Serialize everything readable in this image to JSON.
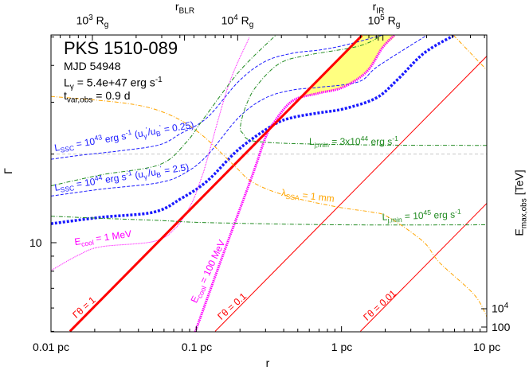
{
  "chart_data": {
    "type": "line",
    "xlabel": "r",
    "ylabel": "Γ",
    "right_label": [
      [
        "n",
        "E"
      ],
      [
        "sub",
        "max,obs"
      ],
      [
        "n",
        " [TeV]"
      ]
    ],
    "x_scale": "log",
    "y_scale": "log",
    "xlim": [
      0.01,
      10
    ],
    "ylim": [
      5,
      50.7
    ],
    "x_ticks": [
      {
        "v": 0.01,
        "label": "0.01 pc"
      },
      {
        "v": 0.1,
        "label": "0.1 pc"
      },
      {
        "v": 1,
        "label": "1 pc"
      },
      {
        "v": 10,
        "label": "10 pc"
      }
    ],
    "y_ticks": [
      {
        "v": 10,
        "label": "10"
      }
    ],
    "right_ticks": [
      {
        "label": [
          [
            "n",
            "10"
          ],
          [
            "sup",
            "4"
          ]
        ]
      },
      {
        "label": [
          [
            "n",
            "100"
          ]
        ]
      }
    ],
    "top_ticks": [
      {
        "label": [
          [
            "n",
            "10"
          ],
          [
            "sup",
            "3"
          ],
          [
            "n",
            " R"
          ],
          [
            "sub",
            "g"
          ]
        ]
      },
      {
        "label": [
          [
            "n",
            "10"
          ],
          [
            "sup",
            "4"
          ],
          [
            "n",
            " R"
          ],
          [
            "sub",
            "g"
          ]
        ]
      },
      {
        "label": [
          [
            "n",
            "10"
          ],
          [
            "sup",
            "5"
          ],
          [
            "n",
            " R"
          ],
          [
            "sub",
            "g"
          ]
        ]
      }
    ],
    "markers": [
      {
        "name": [
          [
            "n",
            "r"
          ],
          [
            "sub",
            "BLR"
          ]
        ],
        "r": 0.083
      },
      {
        "name": [
          [
            "n",
            "r"
          ],
          [
            "sub",
            "IR"
          ]
        ],
        "r": 1.79
      }
    ],
    "info": {
      "source": "PKS 1510-089",
      "mjd": "MJD 54948",
      "lgamma": [
        [
          "n",
          "L"
        ],
        [
          "sub",
          "γ"
        ],
        [
          "n",
          " = 5.4e+47 erg s"
        ],
        [
          "sup",
          "-1"
        ]
      ],
      "tvar": [
        [
          "n",
          "t"
        ],
        [
          "sub",
          "var,obs"
        ],
        [
          "n",
          " = 0.9 d"
        ]
      ]
    },
    "colors": {
      "blue": "#1a1aff",
      "magenta": "#ff00ff",
      "red": "#ff0000",
      "green": "#228b22",
      "orange": "#ffa500",
      "yellow": "#ffff80",
      "gray": "#c8c8c8"
    },
    "allowed_region": [
      [
        1.38,
        50.7
      ],
      [
        2.31,
        50.7
      ],
      [
        1.91,
        45.9
      ],
      [
        1.49,
        38.1
      ],
      [
        1.02,
        33.7
      ],
      [
        0.697,
        32.2
      ],
      [
        0.518,
        31.0
      ]
    ],
    "reference_line_gamma": 20,
    "series": [
      {
        "id": "lssc43",
        "style": "blue-dashed",
        "label": [
          [
            "n",
            "L"
          ],
          [
            "sub",
            "SSC"
          ],
          [
            "n",
            " = 10"
          ],
          [
            "sup",
            "43"
          ],
          [
            "n",
            " erg s"
          ],
          [
            "sup",
            "-1"
          ],
          [
            "n",
            "  (u"
          ],
          [
            "sub",
            "γ"
          ],
          [
            "sup",
            "'"
          ],
          [
            "n",
            "/u"
          ],
          [
            "sub",
            "B"
          ],
          [
            "sup",
            "'"
          ],
          [
            "n",
            " = 0.25)"
          ]
        ],
        "points": [
          [
            0.01,
            19.2
          ],
          [
            0.0157,
            19.8
          ],
          [
            0.0296,
            20.5
          ],
          [
            0.0557,
            21.5
          ],
          [
            0.0783,
            23.5
          ],
          [
            0.119,
            26.6
          ],
          [
            0.197,
            35.4
          ],
          [
            0.299,
            41.3
          ],
          [
            0.459,
            44.0
          ],
          [
            0.697,
            45.1
          ],
          [
            1.04,
            46.8
          ],
          [
            1.91,
            50.7
          ]
        ]
      },
      {
        "id": "lssc44",
        "style": "blue-dashed",
        "label": [
          [
            "n",
            "L"
          ],
          [
            "sub",
            "SSC"
          ],
          [
            "n",
            " = 10"
          ],
          [
            "sup",
            "44"
          ],
          [
            "n",
            " erg s"
          ],
          [
            "sup",
            "-1"
          ],
          [
            "n",
            "  (u"
          ],
          [
            "sub",
            "γ"
          ],
          [
            "sup",
            "'"
          ],
          [
            "n",
            "/u"
          ],
          [
            "sub",
            "B"
          ],
          [
            "sup",
            "'"
          ],
          [
            "n",
            " = 2.5)"
          ]
        ],
        "points": [
          [
            0.01,
            14.4
          ],
          [
            0.0222,
            15.2
          ],
          [
            0.0557,
            16.0
          ],
          [
            0.0845,
            17.3
          ],
          [
            0.119,
            19.8
          ],
          [
            0.197,
            26.7
          ],
          [
            0.299,
            31.0
          ],
          [
            0.459,
            33.0
          ],
          [
            0.697,
            33.7
          ],
          [
            1.31,
            35.2
          ],
          [
            1.79,
            39.8
          ],
          [
            3.83,
            50.5
          ]
        ]
      },
      {
        "id": "lssc-thick",
        "style": "blue-thick",
        "points": [
          [
            0.01,
            11.6
          ],
          [
            0.0222,
            12.2
          ],
          [
            0.051,
            12.7
          ],
          [
            0.0783,
            14.1
          ],
          [
            0.119,
            16.2
          ],
          [
            0.197,
            20.8
          ],
          [
            0.339,
            25.1
          ],
          [
            0.459,
            26.6
          ],
          [
            0.697,
            27.6
          ],
          [
            1.04,
            28.5
          ],
          [
            1.73,
            31.0
          ],
          [
            2.43,
            35.8
          ],
          [
            3.69,
            44.0
          ],
          [
            5.89,
            50.5
          ]
        ]
      },
      {
        "id": "ecool1",
        "style": "magenta-thin",
        "label": [
          [
            "n",
            "E"
          ],
          [
            "sub",
            "cool"
          ],
          [
            "n",
            " = 1 MeV"
          ]
        ],
        "points": [
          [
            0.01,
            8.04
          ],
          [
            0.0157,
            9.11
          ],
          [
            0.0222,
            9.69
          ],
          [
            0.051,
            10.1
          ],
          [
            0.0718,
            11.2
          ],
          [
            0.0923,
            13.5
          ],
          [
            0.109,
            16.7
          ],
          [
            0.119,
            19.2
          ],
          [
            0.167,
            34.3
          ],
          [
            0.232,
            49.8
          ]
        ]
      },
      {
        "id": "ecool100",
        "style": "magenta-thick",
        "label": [
          [
            "n",
            "E"
          ],
          [
            "sub",
            "cool"
          ],
          [
            "n",
            " = 100 MeV"
          ]
        ],
        "points": [
          [
            0.0984,
            4.98
          ],
          [
            0.153,
            9.11
          ],
          [
            0.244,
            17.0
          ],
          [
            0.299,
            22.7
          ],
          [
            0.339,
            25.4
          ],
          [
            0.459,
            30.3
          ],
          [
            0.697,
            32.2
          ],
          [
            1.02,
            33.7
          ],
          [
            1.49,
            38.1
          ],
          [
            1.91,
            45.9
          ],
          [
            2.31,
            50.7
          ]
        ]
      },
      {
        "id": "gt1",
        "style": "red-thick",
        "label": [
          [
            "n",
            "Γθ = 1"
          ]
        ],
        "points": [
          [
            0.0135,
            5
          ],
          [
            1.38,
            50.5
          ]
        ]
      },
      {
        "id": "gt01",
        "style": "red-thin",
        "label": [
          [
            "n",
            "Γθ = 0.1"
          ]
        ],
        "points": [
          [
            0.135,
            5
          ],
          [
            10,
            43
          ]
        ]
      },
      {
        "id": "gt001",
        "style": "red-thin",
        "label": [
          [
            "n",
            "Γθ = 0.01"
          ]
        ],
        "points": [
          [
            1.35,
            5
          ],
          [
            10,
            13.6
          ]
        ]
      },
      {
        "id": "green-upper",
        "style": "green",
        "points": [
          [
            0.01,
            15.6
          ],
          [
            0.0222,
            17.0
          ],
          [
            0.0557,
            18.4
          ],
          [
            0.0845,
            21.8
          ],
          [
            0.112,
            26.3
          ],
          [
            0.197,
            38.1
          ],
          [
            0.356,
            50.9
          ]
        ]
      },
      {
        "id": "ljmin3e44",
        "style": "green",
        "label": [
          [
            "n",
            "L"
          ],
          [
            "sub",
            "j,min"
          ],
          [
            "n",
            " = 3x10"
          ],
          [
            "sup",
            "44"
          ],
          [
            "n",
            " erg s"
          ],
          [
            "sup",
            "-1"
          ]
        ],
        "points": [
          [
            10,
            21.4
          ],
          [
            1.31,
            21.5
          ],
          [
            0.277,
            22.0
          ],
          [
            0.21,
            23.5
          ],
          [
            0.202,
            25.1
          ],
          [
            0.223,
            29.7
          ],
          [
            0.263,
            34.3
          ],
          [
            0.371,
            40.5
          ],
          [
            0.562,
            43.2
          ],
          [
            1.31,
            46.5
          ],
          [
            1.91,
            50.7
          ]
        ]
      },
      {
        "id": "ljmin1e45",
        "style": "green",
        "label": [
          [
            "n",
            "L"
          ],
          [
            "sub",
            "j,min"
          ],
          [
            "n",
            " = 10"
          ],
          [
            "sup",
            "45"
          ],
          [
            "n",
            " erg s"
          ],
          [
            "sup",
            "-1"
          ]
        ],
        "points": [
          [
            0.01,
            12.3
          ],
          [
            0.0222,
            12.1
          ],
          [
            0.0557,
            11.9
          ],
          [
            0.119,
            11.7
          ],
          [
            1,
            11.5
          ],
          [
            10,
            11.5
          ]
        ]
      },
      {
        "id": "lssa1mm",
        "style": "orange",
        "label": [
          [
            "n",
            "λ"
          ],
          [
            "sub",
            "SSA"
          ],
          [
            "n",
            " = 1 mm"
          ]
        ],
        "points": [
          [
            0.01,
            31.4
          ],
          [
            0.0336,
            29.7
          ],
          [
            0.0632,
            27.4
          ],
          [
            0.105,
            23.6
          ],
          [
            0.18,
            18.4
          ],
          [
            0.247,
            16.0
          ],
          [
            0.426,
            14.4
          ],
          [
            0.955,
            13.2
          ],
          [
            1.62,
            12.7
          ],
          [
            2.11,
            12.2
          ],
          [
            3.64,
            10.1
          ],
          [
            4.74,
            8.55
          ],
          [
            8.17,
            6.67
          ],
          [
            10,
            5.61
          ]
        ]
      },
      {
        "id": "orange-upper",
        "style": "orange",
        "points": [
          [
            5.89,
            50.7
          ],
          [
            10,
            38.6
          ]
        ]
      }
    ]
  }
}
